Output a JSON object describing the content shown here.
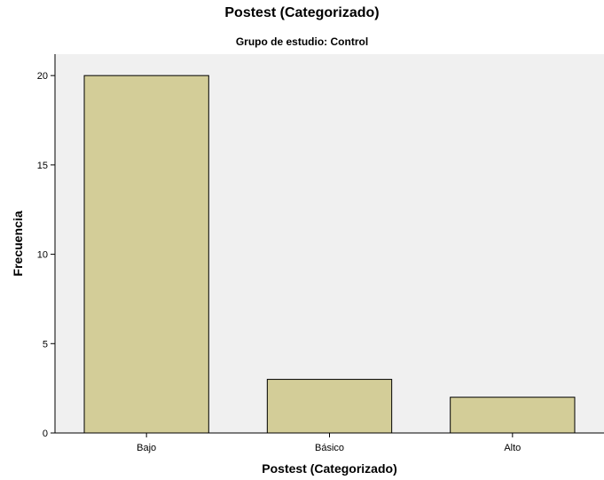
{
  "chart_data": {
    "type": "bar",
    "title": "Postest (Categorizado)",
    "subtitle": "Grupo de estudio: Control",
    "xlabel": "Postest (Categorizado)",
    "ylabel": "Frecuencia",
    "categories": [
      "Bajo",
      "Básico",
      "Alto"
    ],
    "values": [
      20,
      3,
      2
    ],
    "ylim": [
      0,
      21.2
    ],
    "yticks": [
      0,
      5,
      10,
      15,
      20
    ],
    "grid": false,
    "colors": {
      "bar_fill": "#d3cd98",
      "bar_stroke": "#000000",
      "plot_background": "#f0f0f0"
    }
  }
}
